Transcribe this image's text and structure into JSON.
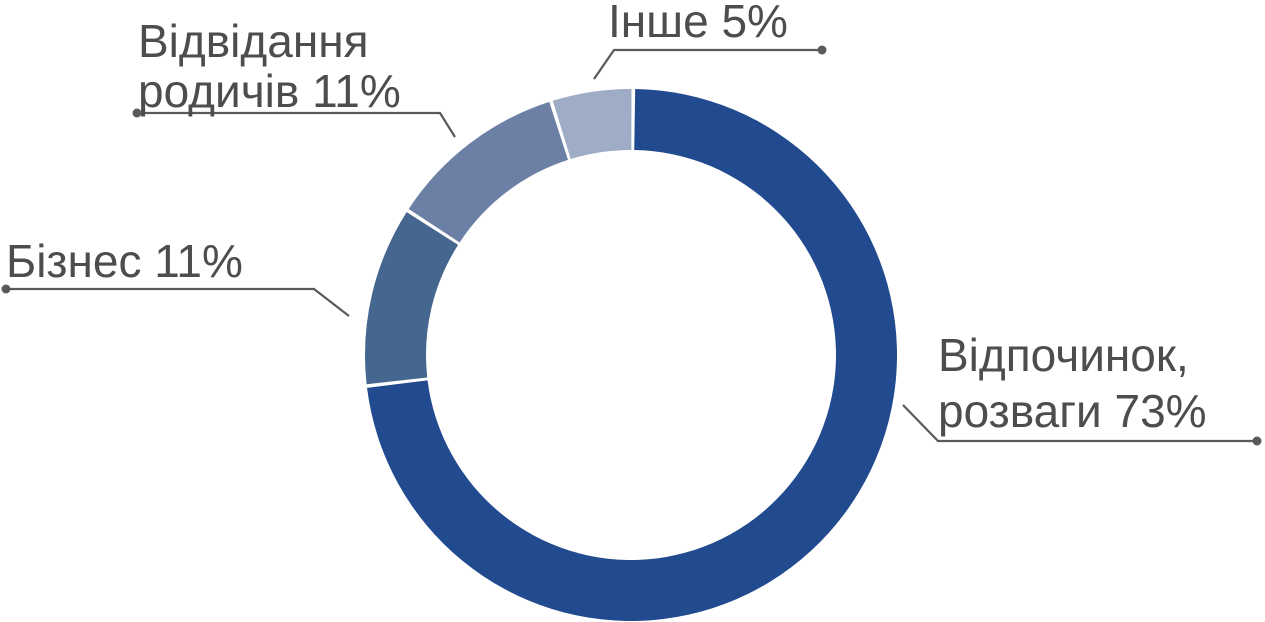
{
  "chart_data": {
    "type": "pie",
    "variant": "donut",
    "slices": [
      {
        "label_lines": [
          "Відпочинок,",
          "розваги 73%"
        ],
        "value": 73,
        "color": "#224A8F"
      },
      {
        "label_lines": [
          "Бізнес 11%"
        ],
        "value": 11,
        "color": "#44668F"
      },
      {
        "label_lines": [
          "Відвідання",
          "родичів 11%"
        ],
        "value": 11,
        "color": "#6C80A6"
      },
      {
        "label_lines": [
          "Інше 5%"
        ],
        "value": 5,
        "color": "#9EACC6"
      }
    ]
  }
}
